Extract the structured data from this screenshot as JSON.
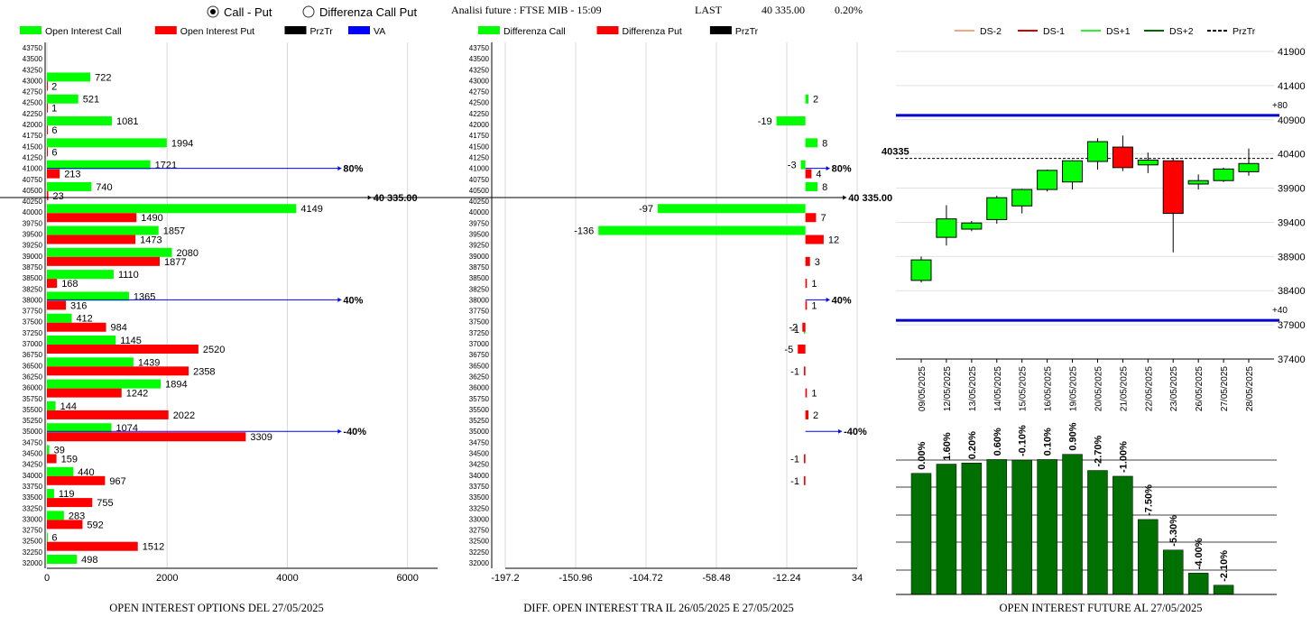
{
  "header": {
    "radio_call_put": "Call - Put",
    "radio_diff": "Differenza Call Put",
    "title": "Analisi future : FTSE MIB - 15:09",
    "last_label": "LAST",
    "last_value": "40 335.00",
    "last_change": "0.20%"
  },
  "colors": {
    "green": "#00ff00",
    "red": "#ff0000",
    "black": "#000000",
    "blue": "#0000ff",
    "dark_green": "#007000",
    "candle_blue": "#0000cc",
    "ds_m2": "#f4a582",
    "ds_m1": "#cc0000",
    "ds_p1": "#33ee33",
    "ds_p2": "#006400"
  },
  "chart_data": [
    {
      "type": "bar",
      "orientation": "horizontal",
      "legend": [
        "Open Interest Call",
        "Open Interest Put",
        "PrzTr",
        "VA"
      ],
      "strikes": [
        43750,
        43500,
        43250,
        43000,
        42750,
        42500,
        42250,
        42000,
        41750,
        41500,
        41250,
        41000,
        40750,
        40500,
        40250,
        40000,
        39750,
        39500,
        39250,
        39000,
        38750,
        38500,
        38250,
        38000,
        37750,
        37500,
        37250,
        37000,
        36750,
        36500,
        36250,
        36000,
        35750,
        35500,
        35250,
        35000,
        34750,
        34500,
        34250,
        34000,
        33750,
        33500,
        33250,
        33000,
        32750,
        32500,
        32250,
        32000
      ],
      "series": [
        {
          "name": "Open Interest Call",
          "points": [
            {
              "strike": 43000,
              "value": 722
            },
            {
              "strike": 42500,
              "value": 521
            },
            {
              "strike": 42000,
              "value": 1081
            },
            {
              "strike": 41500,
              "value": 1994
            },
            {
              "strike": 41000,
              "value": 1721
            },
            {
              "strike": 40500,
              "value": 740
            },
            {
              "strike": 40000,
              "value": 4149
            },
            {
              "strike": 39500,
              "value": 1857
            },
            {
              "strike": 39000,
              "value": 2080
            },
            {
              "strike": 38500,
              "value": 1110
            },
            {
              "strike": 38000,
              "value": 1365
            },
            {
              "strike": 37500,
              "value": 412
            },
            {
              "strike": 37000,
              "value": 1145
            },
            {
              "strike": 36500,
              "value": 1439
            },
            {
              "strike": 36000,
              "value": 1894
            },
            {
              "strike": 35500,
              "value": 144
            },
            {
              "strike": 35000,
              "value": 1074
            },
            {
              "strike": 34500,
              "value": 39
            },
            {
              "strike": 34000,
              "value": 440
            },
            {
              "strike": 33500,
              "value": 119
            },
            {
              "strike": 33000,
              "value": 283
            },
            {
              "strike": 32500,
              "value": 6
            },
            {
              "strike": 32000,
              "value": 498
            }
          ]
        },
        {
          "name": "Open Interest Put",
          "points": [
            {
              "strike": 43000,
              "value": 2
            },
            {
              "strike": 42500,
              "value": 1
            },
            {
              "strike": 42000,
              "value": 6
            },
            {
              "strike": 41500,
              "value": 6
            },
            {
              "strike": 41000,
              "value": 213
            },
            {
              "strike": 40500,
              "value": 23
            },
            {
              "strike": 40000,
              "value": 1490
            },
            {
              "strike": 39500,
              "value": 1473
            },
            {
              "strike": 39000,
              "value": 1877
            },
            {
              "strike": 38500,
              "value": 168
            },
            {
              "strike": 38000,
              "value": 316
            },
            {
              "strike": 37500,
              "value": 984
            },
            {
              "strike": 37000,
              "value": 2520
            },
            {
              "strike": 36500,
              "value": 2358
            },
            {
              "strike": 36000,
              "value": 1242
            },
            {
              "strike": 35500,
              "value": 2022
            },
            {
              "strike": 35000,
              "value": 3309
            },
            {
              "strike": 34500,
              "value": 159
            },
            {
              "strike": 34000,
              "value": 967
            },
            {
              "strike": 33500,
              "value": 755
            },
            {
              "strike": 33000,
              "value": 592
            },
            {
              "strike": 32500,
              "value": 1512
            }
          ]
        }
      ],
      "xlim": [
        0,
        6500
      ],
      "xticks": [
        "0",
        "2000",
        "4000",
        "6000"
      ],
      "markers": [
        {
          "label": "80%",
          "strike": 41000,
          "color": "#0000ff",
          "x": 4900
        },
        {
          "label": "40 335.00",
          "strike": 40335,
          "color": "#000000",
          "x": 5400
        },
        {
          "label": "40%",
          "strike": 38000,
          "color": "#0000ff",
          "x": 4900
        },
        {
          "label": "-40%",
          "strike": 35000,
          "color": "#0000ff",
          "x": 4900
        }
      ],
      "footer": "OPEN INTEREST OPTIONS DEL 27/05/2025"
    },
    {
      "type": "bar",
      "orientation": "horizontal",
      "legend": [
        "Differenza Call",
        "Differenza Put",
        "PrzTr"
      ],
      "strikes": [
        43750,
        43500,
        43250,
        43000,
        42750,
        42500,
        42250,
        42000,
        41750,
        41500,
        41250,
        41000,
        40750,
        40500,
        40250,
        40000,
        39750,
        39500,
        39250,
        39000,
        38750,
        38500,
        38250,
        38000,
        37750,
        37500,
        37250,
        37000,
        36750,
        36500,
        36250,
        36000,
        35750,
        35500,
        35250,
        35000,
        34750,
        34500,
        34250,
        34000,
        33750,
        33500,
        33250,
        33000,
        32750,
        32500,
        32250,
        32000
      ],
      "series": [
        {
          "name": "Differenza Call",
          "points": [
            {
              "strike": 42500,
              "value": 2
            },
            {
              "strike": 42000,
              "value": -19
            },
            {
              "strike": 41500,
              "value": 8
            },
            {
              "strike": 41000,
              "value": -3
            },
            {
              "strike": 40500,
              "value": 8
            },
            {
              "strike": 40000,
              "value": -97
            },
            {
              "strike": 39500,
              "value": -136
            },
            {
              "strike": 37250,
              "value": -1
            }
          ]
        },
        {
          "name": "Differenza Put",
          "points": [
            {
              "strike": 41000,
              "value": 4
            },
            {
              "strike": 40000,
              "value": 7
            },
            {
              "strike": 39500,
              "value": 12
            },
            {
              "strike": 39000,
              "value": 3
            },
            {
              "strike": 38500,
              "value": 1
            },
            {
              "strike": 38000,
              "value": 1
            },
            {
              "strike": 37500,
              "value": -2
            },
            {
              "strike": 37000,
              "value": -5
            },
            {
              "strike": 36500,
              "value": -1
            },
            {
              "strike": 36000,
              "value": 1
            },
            {
              "strike": 35500,
              "value": 2
            },
            {
              "strike": 34500,
              "value": -1
            },
            {
              "strike": 34000,
              "value": -1
            }
          ]
        }
      ],
      "xlim": [
        -197.2,
        34
      ],
      "xticks": [
        "-197.2",
        "-150.96",
        "-104.72",
        "-58.48",
        "-12.24",
        "34"
      ],
      "zero_at": 0,
      "markers": [
        {
          "label": "80%",
          "strike": 41000,
          "color": "#0000ff",
          "x": 16
        },
        {
          "label": "40 335.00",
          "strike": 40335,
          "color": "#000000",
          "x": 27
        },
        {
          "label": "40%",
          "strike": 38000,
          "color": "#0000ff",
          "x": 16
        },
        {
          "label": "-40%",
          "strike": 35000,
          "color": "#0000ff",
          "x": 24
        }
      ],
      "footer": "DIFF. OPEN INTEREST TRA IL 26/05/2025 E 27/05/2025"
    },
    {
      "type": "candlestick",
      "legend": [
        "DS-2",
        "DS-1",
        "DS+1",
        "DS+2",
        "PrzTr"
      ],
      "categories": [
        "09/05/2025",
        "12/05/2025",
        "13/05/2025",
        "14/05/2025",
        "15/05/2025",
        "16/05/2025",
        "19/05/2025",
        "20/05/2025",
        "21/05/2025",
        "22/05/2025",
        "23/05/2025",
        "26/05/2025",
        "27/05/2025",
        "28/05/2025"
      ],
      "candles": [
        {
          "open": 38550,
          "close": 38850,
          "high": 38900,
          "low": 38520
        },
        {
          "open": 39180,
          "close": 39450,
          "high": 39650,
          "low": 39060
        },
        {
          "open": 39300,
          "close": 39390,
          "high": 39420,
          "low": 39270
        },
        {
          "open": 39440,
          "close": 39760,
          "high": 39790,
          "low": 39380
        },
        {
          "open": 39640,
          "close": 39880,
          "high": 39890,
          "low": 39530
        },
        {
          "open": 39880,
          "close": 40160,
          "high": 40170,
          "low": 39850
        },
        {
          "open": 39990,
          "close": 40300,
          "high": 40310,
          "low": 39880
        },
        {
          "open": 40290,
          "close": 40580,
          "high": 40630,
          "low": 40170
        },
        {
          "open": 40500,
          "close": 40200,
          "high": 40670,
          "low": 40150
        },
        {
          "open": 40240,
          "close": 40310,
          "high": 40420,
          "low": 40120
        },
        {
          "open": 40300,
          "close": 39530,
          "high": 40330,
          "low": 38960
        },
        {
          "open": 39960,
          "close": 40010,
          "high": 40100,
          "low": 39880
        },
        {
          "open": 40010,
          "close": 40180,
          "high": 40200,
          "low": 39990
        },
        {
          "open": 40140,
          "close": 40260,
          "high": 40480,
          "low": 40080
        }
      ],
      "ylim": [
        37400,
        41900
      ],
      "yticks": [
        "41900",
        "41400",
        "40900",
        "40400",
        "39900",
        "39400",
        "38900",
        "38400",
        "37900",
        "37400"
      ],
      "lines": [
        {
          "label": "+80",
          "value": 40965,
          "color": "#0000cc"
        },
        {
          "label": "+40",
          "value": 37965,
          "color": "#0000cc"
        },
        {
          "label": "40335",
          "value": 40335,
          "color": "#000000",
          "dashed": true
        }
      ]
    },
    {
      "type": "bar",
      "categories": [
        "09/05/2025",
        "12/05/2025",
        "13/05/2025",
        "14/05/2025",
        "15/05/2025",
        "16/05/2025",
        "19/05/2025",
        "20/05/2025",
        "21/05/2025",
        "22/05/2025",
        "23/05/2025",
        "26/05/2025",
        "27/05/2025",
        "28/05/2025"
      ],
      "labels": [
        "0.00%",
        "1.60%",
        "0.20%",
        "0.60%",
        "-0.10%",
        "0.10%",
        "0.90%",
        "-2.70%",
        "-1.00%",
        "-7.50%",
        "-5.30%",
        "-4.00%",
        "-2.10%"
      ],
      "values": [
        100,
        101.6,
        101.8,
        102.4,
        102.3,
        102.4,
        103.3,
        100.5,
        99.5,
        92.0,
        86.7,
        82.7,
        80.6
      ],
      "ylim": [
        79,
        107
      ],
      "footer": "OPEN INTEREST FUTURE AL 27/05/2025"
    }
  ]
}
